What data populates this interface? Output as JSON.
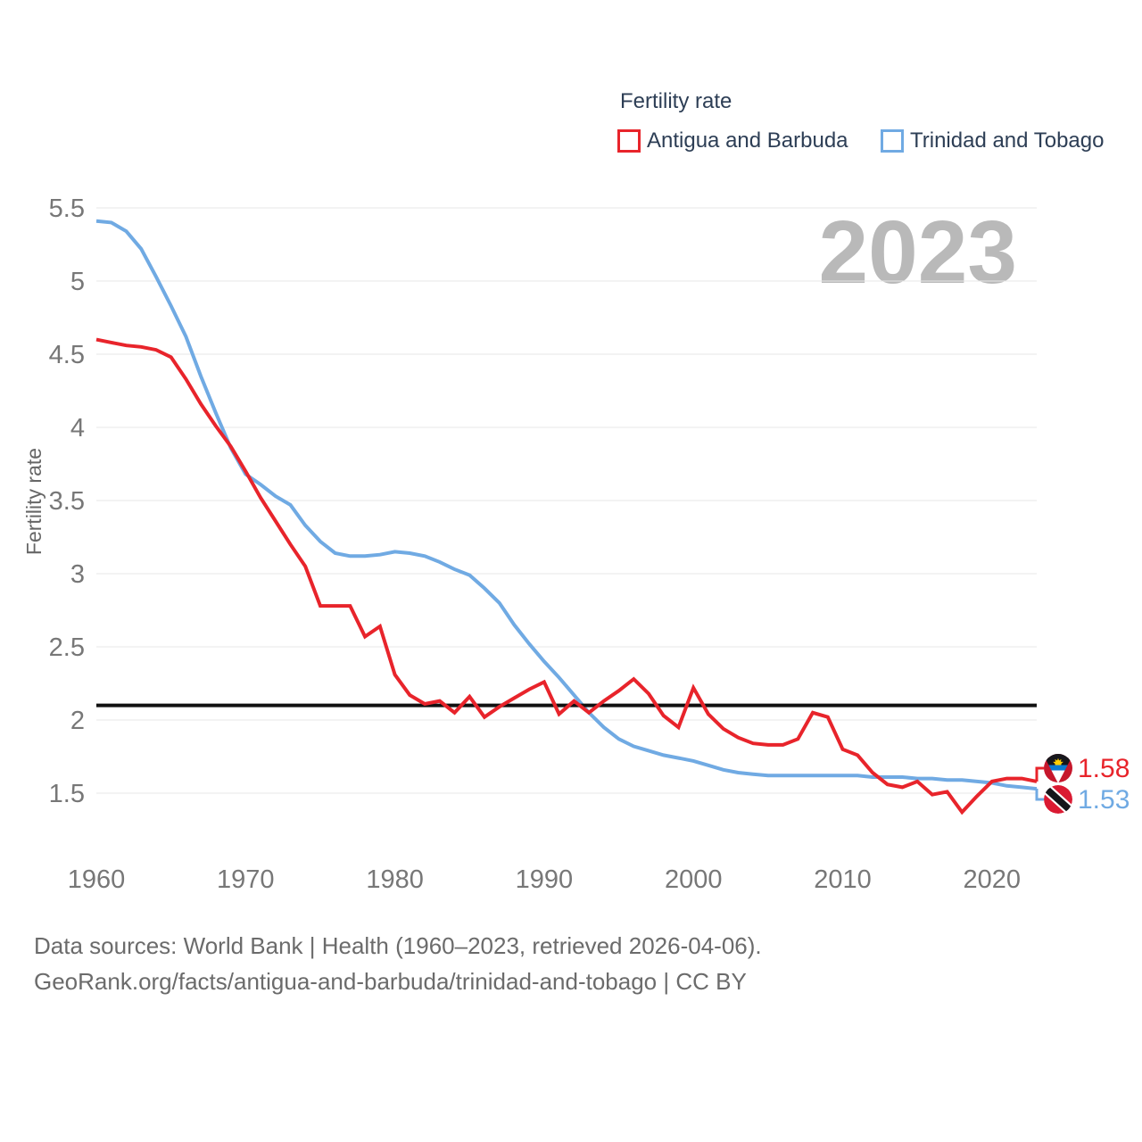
{
  "legend": {
    "title": "Fertility rate"
  },
  "watermark": "2023",
  "chart_data": {
    "type": "line",
    "title": "Fertility rate",
    "xlabel": "",
    "ylabel": "Fertility rate",
    "grid": true,
    "legend_position": "top-right",
    "x_ticks": [
      1960,
      1970,
      1980,
      1990,
      2000,
      2010,
      2020
    ],
    "y_ticks": [
      1.5,
      2,
      2.5,
      3,
      3.5,
      4,
      4.5,
      5,
      5.5
    ],
    "ylim": [
      1.25,
      5.6
    ],
    "reference_line_value": 2.1,
    "x": [
      1960,
      1961,
      1962,
      1963,
      1964,
      1965,
      1966,
      1967,
      1968,
      1969,
      1970,
      1971,
      1972,
      1973,
      1974,
      1975,
      1976,
      1977,
      1978,
      1979,
      1980,
      1981,
      1982,
      1983,
      1984,
      1985,
      1986,
      1987,
      1988,
      1989,
      1990,
      1991,
      1992,
      1993,
      1994,
      1995,
      1996,
      1997,
      1998,
      1999,
      2000,
      2001,
      2002,
      2003,
      2004,
      2005,
      2006,
      2007,
      2008,
      2009,
      2010,
      2011,
      2012,
      2013,
      2014,
      2015,
      2016,
      2017,
      2018,
      2019,
      2020,
      2021,
      2022,
      2023
    ],
    "series": [
      {
        "name": "Antigua and Barbuda",
        "color": "#e8242b",
        "end_label": "1.58",
        "values": [
          4.6,
          4.58,
          4.56,
          4.55,
          4.53,
          4.48,
          4.33,
          4.16,
          4.01,
          3.87,
          3.7,
          3.52,
          3.36,
          3.2,
          3.05,
          2.78,
          2.78,
          2.78,
          2.57,
          2.64,
          2.31,
          2.17,
          2.11,
          2.13,
          2.05,
          2.16,
          2.02,
          2.09,
          2.15,
          2.21,
          2.26,
          2.04,
          2.13,
          2.05,
          2.13,
          2.2,
          2.28,
          2.18,
          2.03,
          1.95,
          2.22,
          2.04,
          1.94,
          1.88,
          1.84,
          1.83,
          1.83,
          1.87,
          2.05,
          2.02,
          1.8,
          1.76,
          1.64,
          1.56,
          1.54,
          1.58,
          1.49,
          1.51,
          1.37,
          1.48,
          1.58,
          1.6,
          1.6,
          1.58
        ]
      },
      {
        "name": "Trinidad and Tobago",
        "color": "#70aae3",
        "end_label": "1.53",
        "values": [
          5.41,
          5.4,
          5.34,
          5.22,
          5.03,
          4.83,
          4.62,
          4.35,
          4.1,
          3.86,
          3.68,
          3.61,
          3.53,
          3.47,
          3.33,
          3.22,
          3.14,
          3.12,
          3.12,
          3.13,
          3.15,
          3.14,
          3.12,
          3.08,
          3.03,
          2.99,
          2.9,
          2.8,
          2.65,
          2.52,
          2.4,
          2.29,
          2.17,
          2.05,
          1.95,
          1.87,
          1.82,
          1.79,
          1.76,
          1.74,
          1.72,
          1.69,
          1.66,
          1.64,
          1.63,
          1.62,
          1.62,
          1.62,
          1.62,
          1.62,
          1.62,
          1.62,
          1.61,
          1.61,
          1.61,
          1.6,
          1.6,
          1.59,
          1.59,
          1.58,
          1.57,
          1.55,
          1.54,
          1.53
        ]
      }
    ]
  },
  "footer": {
    "line1": "Data sources: World Bank | Health (1960–2023, retrieved 2026-04-06).",
    "line2": "GeoRank.org/facts/antigua-and-barbuda/trinidad-and-tobago | CC BY"
  }
}
